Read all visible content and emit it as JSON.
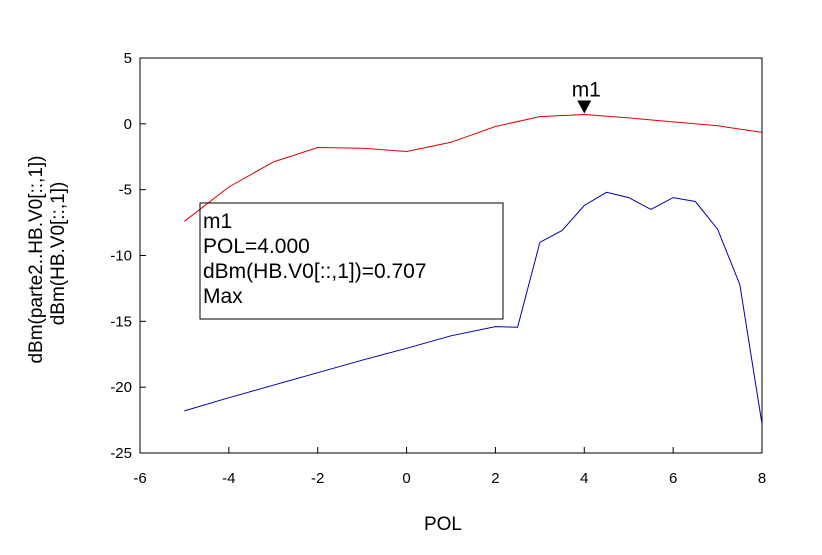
{
  "chart_data": {
    "type": "line",
    "xlabel": "POL",
    "ylabels": [
      {
        "text": "dBm(parte2..HB.V0[::,1])",
        "color": "#0000cc"
      },
      {
        "text": "dBm(HB.V0[::,1])",
        "color": "#dd0000"
      }
    ],
    "xlim": [
      -6,
      8
    ],
    "ylim": [
      -25,
      5
    ],
    "xticks": [
      -6,
      -4,
      -2,
      0,
      2,
      4,
      6,
      8
    ],
    "yticks": [
      5,
      0,
      -5,
      -10,
      -15,
      -20,
      -25
    ],
    "grid": false,
    "series": [
      {
        "color": "#dd0000",
        "x": [
          -5,
          -4,
          -3,
          -2,
          -1,
          0,
          1,
          2,
          3,
          4,
          5,
          6,
          7,
          8
        ],
        "y": [
          -7.4,
          -4.8,
          -2.9,
          -1.8,
          -1.85,
          -2.1,
          -1.4,
          -0.2,
          0.55,
          0.707,
          0.45,
          0.15,
          -0.15,
          -0.65
        ]
      },
      {
        "color": "#0000aa",
        "x": [
          -5,
          -4,
          -3,
          -2,
          -1,
          0,
          1,
          2,
          2.5,
          3,
          3.5,
          4,
          4.5,
          5,
          5.5,
          6,
          6.5,
          7,
          7.5,
          8
        ],
        "y": [
          -21.8,
          -20.8,
          -19.85,
          -18.9,
          -17.95,
          -17.05,
          -16.1,
          -15.4,
          -15.45,
          -9.0,
          -8.1,
          -6.2,
          -5.2,
          -5.6,
          -6.5,
          -5.6,
          -5.9,
          -8.0,
          -12.2,
          -22.8
        ]
      }
    ],
    "marker": {
      "name": "m1",
      "x": 4,
      "y": 0.707,
      "readout": [
        "m1",
        "POL=4.000",
        "dBm(HB.V0[::,1])=0.707",
        "Max"
      ]
    }
  }
}
